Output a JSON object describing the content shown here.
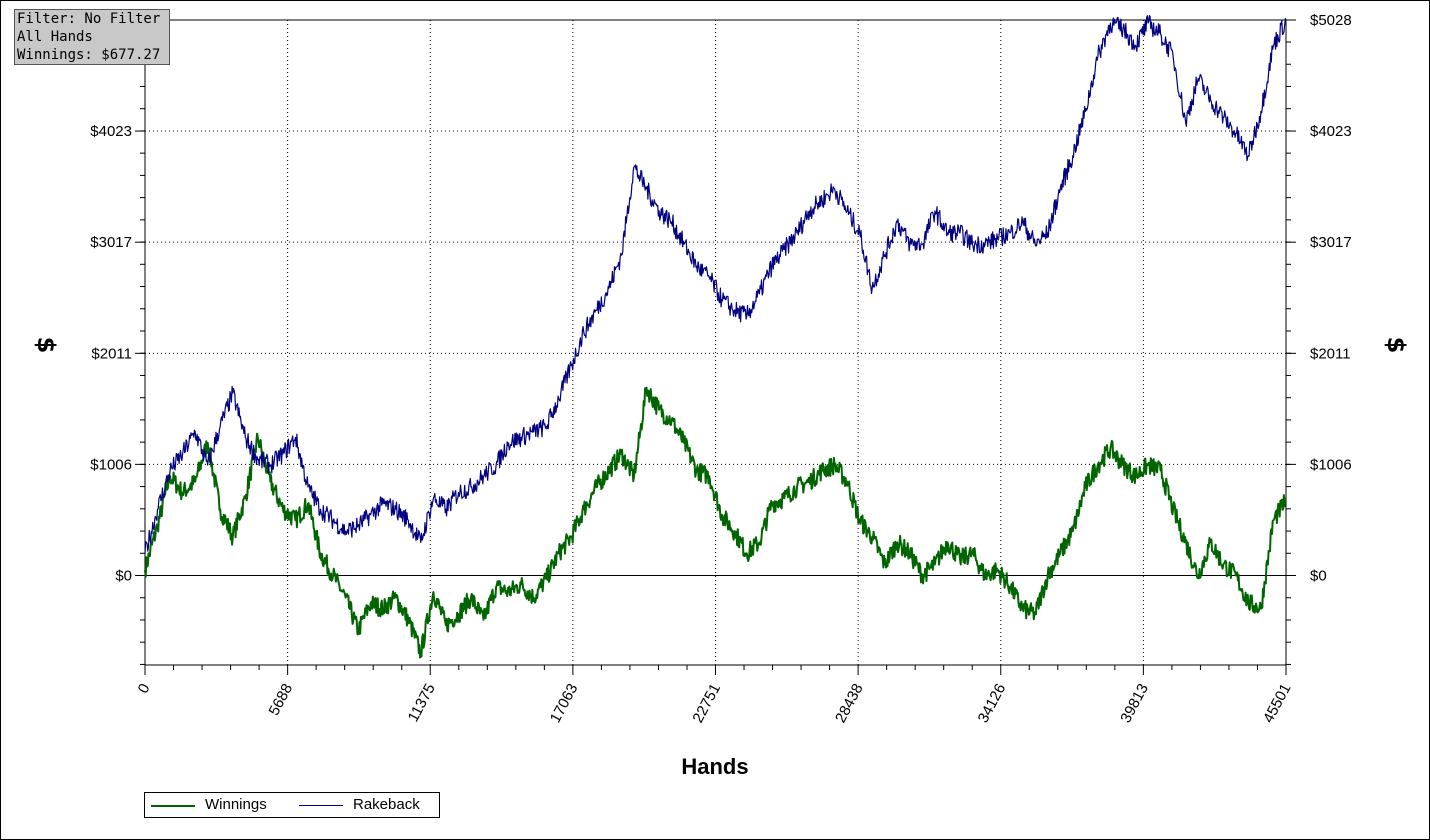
{
  "filter": {
    "line1": "Filter: No Filter",
    "line2": "All Hands",
    "line3": "Winnings: $677.27"
  },
  "chart_data": {
    "type": "line",
    "xlabel": "Hands",
    "ylabel": "$",
    "ylabel_right": "$",
    "xlim": [
      0,
      45501
    ],
    "ylim": [
      -810,
      5028
    ],
    "x_ticks": [
      "0",
      "5688",
      "11375",
      "17063",
      "22751",
      "28438",
      "34126",
      "39813",
      "45501"
    ],
    "y_ticks": [
      "$0",
      "$1006",
      "$2011",
      "$3017",
      "$4023"
    ],
    "y_ticks_right": [
      "$0",
      "$1006",
      "$2011",
      "$3017",
      "$4023",
      "$5028"
    ],
    "grid": "dotted",
    "legend_position": "bottom-left",
    "series": [
      {
        "name": "Winnings",
        "color": "#006400",
        "x": [
          0,
          500,
          1000,
          1500,
          2000,
          2500,
          3000,
          3500,
          4000,
          4500,
          5000,
          5500,
          6000,
          6500,
          7000,
          7500,
          8000,
          8500,
          9000,
          9500,
          10000,
          10500,
          11000,
          11500,
          12000,
          12500,
          13000,
          13500,
          14000,
          14500,
          15000,
          15500,
          16000,
          16500,
          17000,
          17500,
          18000,
          18500,
          19000,
          19500,
          20000,
          20500,
          21000,
          21500,
          22000,
          22500,
          23000,
          23500,
          24000,
          24500,
          25000,
          25500,
          26000,
          26500,
          27000,
          27500,
          28000,
          28500,
          29000,
          29500,
          30000,
          30500,
          31000,
          31500,
          32000,
          32500,
          33000,
          33500,
          34000,
          34500,
          35000,
          35500,
          36000,
          36500,
          37000,
          37500,
          38000,
          38500,
          39000,
          39500,
          40000,
          40500,
          41000,
          41500,
          42000,
          42500,
          43000,
          43500,
          44000,
          44500,
          45000,
          45501
        ],
        "y": [
          50,
          450,
          900,
          750,
          850,
          1200,
          600,
          350,
          700,
          1250,
          850,
          600,
          500,
          650,
          200,
          0,
          -200,
          -500,
          -250,
          -300,
          -200,
          -400,
          -700,
          -150,
          -450,
          -350,
          -200,
          -400,
          -100,
          -150,
          -80,
          -200,
          -30,
          200,
          350,
          600,
          800,
          950,
          1100,
          900,
          1700,
          1500,
          1400,
          1200,
          950,
          900,
          550,
          400,
          200,
          300,
          650,
          700,
          800,
          850,
          950,
          1000,
          850,
          500,
          350,
          100,
          300,
          200,
          0,
          100,
          300,
          150,
          200,
          0,
          50,
          -100,
          -300,
          -350,
          0,
          200,
          400,
          800,
          1000,
          1150,
          1000,
          900,
          1000,
          950,
          600,
          300,
          0,
          300,
          100,
          0,
          -250,
          -300,
          500,
          677
        ]
      },
      {
        "name": "Rakeback",
        "color": "#000080",
        "x": [
          0,
          500,
          1000,
          1500,
          2000,
          2500,
          3000,
          3500,
          4000,
          4500,
          5000,
          5500,
          6000,
          6500,
          7000,
          7500,
          8000,
          8500,
          9000,
          9500,
          10000,
          10500,
          11000,
          11500,
          12000,
          12500,
          13000,
          13500,
          14000,
          14500,
          15000,
          15500,
          16000,
          16500,
          17000,
          17500,
          18000,
          18500,
          19000,
          19500,
          20000,
          20500,
          21000,
          21500,
          22000,
          22500,
          23000,
          23500,
          24000,
          24500,
          25000,
          25500,
          26000,
          26500,
          27000,
          27500,
          28000,
          28500,
          29000,
          29500,
          30000,
          30500,
          31000,
          31500,
          32000,
          32500,
          33000,
          33500,
          34000,
          34500,
          35000,
          35500,
          36000,
          36500,
          37000,
          37500,
          38000,
          38500,
          39000,
          39500,
          40000,
          40500,
          41000,
          41500,
          42000,
          42500,
          43000,
          43500,
          44000,
          44500,
          45000,
          45501
        ],
        "y": [
          200,
          600,
          950,
          1100,
          1300,
          1000,
          1350,
          1650,
          1250,
          1050,
          1000,
          1100,
          1250,
          800,
          600,
          500,
          400,
          450,
          550,
          650,
          600,
          500,
          300,
          700,
          600,
          750,
          800,
          900,
          1000,
          1200,
          1250,
          1300,
          1350,
          1600,
          1900,
          2200,
          2400,
          2600,
          2900,
          3700,
          3500,
          3300,
          3200,
          3000,
          2800,
          2700,
          2500,
          2400,
          2350,
          2550,
          2800,
          2950,
          3100,
          3300,
          3400,
          3500,
          3300,
          3100,
          2600,
          2900,
          3200,
          3000,
          3000,
          3300,
          3100,
          3100,
          3000,
          3000,
          3050,
          3100,
          3200,
          3000,
          3100,
          3500,
          3800,
          4200,
          4700,
          5000,
          4950,
          4800,
          5000,
          4900,
          4700,
          4100,
          4500,
          4300,
          4150,
          4000,
          3800,
          4200,
          4800,
          5028
        ]
      }
    ]
  }
}
